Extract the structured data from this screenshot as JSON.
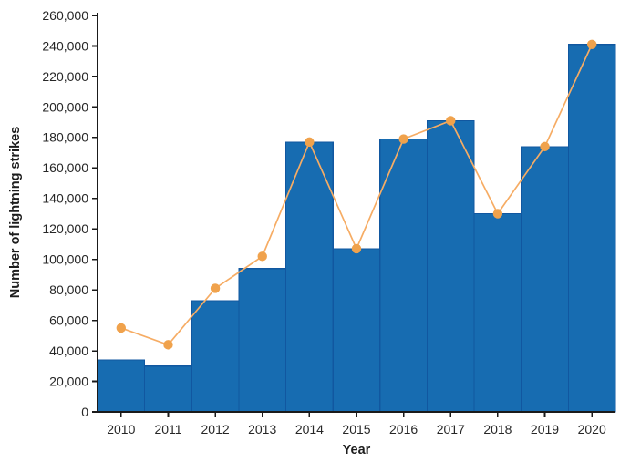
{
  "chart_data": {
    "type": "bar",
    "title": "",
    "xlabel": "Year",
    "ylabel": "Number of lightning strikes",
    "categories": [
      "2010",
      "2011",
      "2012",
      "2013",
      "2014",
      "2015",
      "2016",
      "2017",
      "2018",
      "2019",
      "2020"
    ],
    "series": [
      {
        "name": "lightning-strikes-bars",
        "type": "bar",
        "color": "#176CB1",
        "edge_color": "#1157A0",
        "values": [
          34000,
          30000,
          73000,
          94000,
          177000,
          107000,
          179000,
          191000,
          130000,
          174000,
          241000
        ]
      },
      {
        "name": "lightning-strikes-line",
        "type": "line",
        "color": "#F6AC64",
        "marker_color": "#F0A24C",
        "values": [
          55000,
          44000,
          81000,
          102000,
          177000,
          107000,
          179000,
          191000,
          130000,
          174000,
          241000
        ]
      }
    ],
    "ylim": [
      0,
      260000
    ],
    "y_tick_step": 20000,
    "grid": false,
    "legend": "none",
    "axis_color": "#1a1a1a",
    "tick_label_color": "#262626"
  }
}
